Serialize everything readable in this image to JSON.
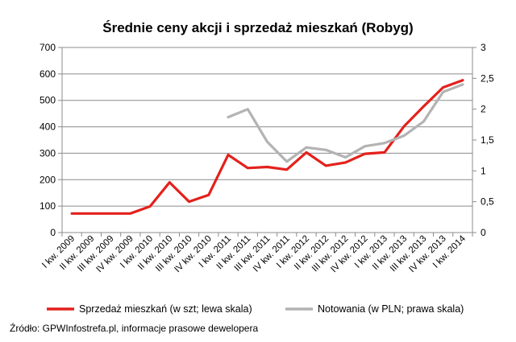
{
  "chart_data": {
    "type": "line",
    "title": "Średnie ceny akcji i sprzedaż mieszkań (Robyg)",
    "categories": [
      "I kw. 2009",
      "II kw. 2009",
      "III kw. 2009",
      "IV kw. 2009",
      "I kw. 2010",
      "II kw. 2010",
      "III kw. 2010",
      "IV kw. 2010",
      "I kw. 2011",
      "II kw. 2011",
      "III kw. 2011",
      "IV kw. 2011",
      "I kw. 2012",
      "II kw. 2012",
      "III kw. 2012",
      "IV kw. 2012",
      "I kw. 2013",
      "II kw. 2013",
      "III kw. 2013",
      "IV kw. 2013",
      "I kw. 2014"
    ],
    "y_left": {
      "ylim": [
        0,
        700
      ],
      "ticks": [
        "0",
        "100",
        "200",
        "300",
        "400",
        "500",
        "600",
        "700"
      ]
    },
    "y_right": {
      "ylim": [
        0,
        3
      ],
      "ticks": [
        "0",
        "0,5",
        "1",
        "1,5",
        "2",
        "2,5",
        "3"
      ]
    },
    "grid": true,
    "legend_position": "bottom",
    "series": [
      {
        "name": "Sprzedaż mieszkań (w szt; lewa skala)",
        "axis": "left",
        "color": "#e3211c",
        "values": [
          72,
          72,
          72,
          72,
          99,
          190,
          117,
          142,
          294,
          244,
          248,
          238,
          303,
          253,
          265,
          298,
          303,
          402,
          477,
          549,
          576
        ]
      },
      {
        "name": "Notowania (w PLN; prawa skala)",
        "axis": "right",
        "color": "#b3b3b3",
        "values": [
          null,
          null,
          null,
          null,
          null,
          null,
          null,
          null,
          1.87,
          2.0,
          1.47,
          1.15,
          1.38,
          1.34,
          1.22,
          1.4,
          1.45,
          1.57,
          1.8,
          2.28,
          2.4
        ]
      }
    ]
  },
  "footer": {
    "source": "Źródło: GPWInfostrefa.pl, informacje prasowe dewelopera"
  }
}
